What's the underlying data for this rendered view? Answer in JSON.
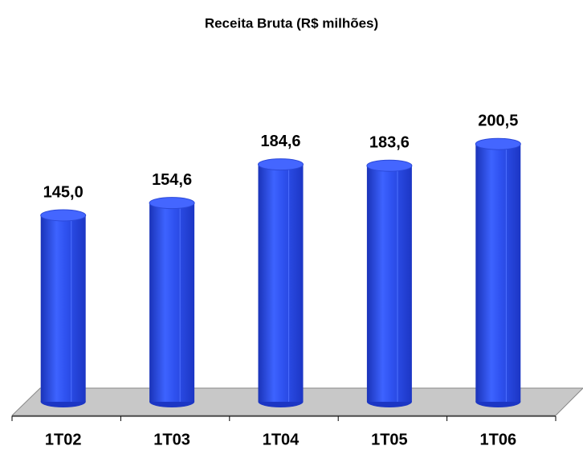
{
  "chart_data": {
    "type": "bar",
    "title": "Receita Bruta (R$ milhões)",
    "categories": [
      "1T02",
      "1T03",
      "1T04",
      "1T05",
      "1T06"
    ],
    "values": [
      145.0,
      154.6,
      184.6,
      183.6,
      200.5
    ],
    "value_labels": [
      "145,0",
      "154,6",
      "184,6",
      "183,6",
      "200,5"
    ],
    "color": "#2f52f0",
    "ylim": [
      0,
      250
    ]
  }
}
